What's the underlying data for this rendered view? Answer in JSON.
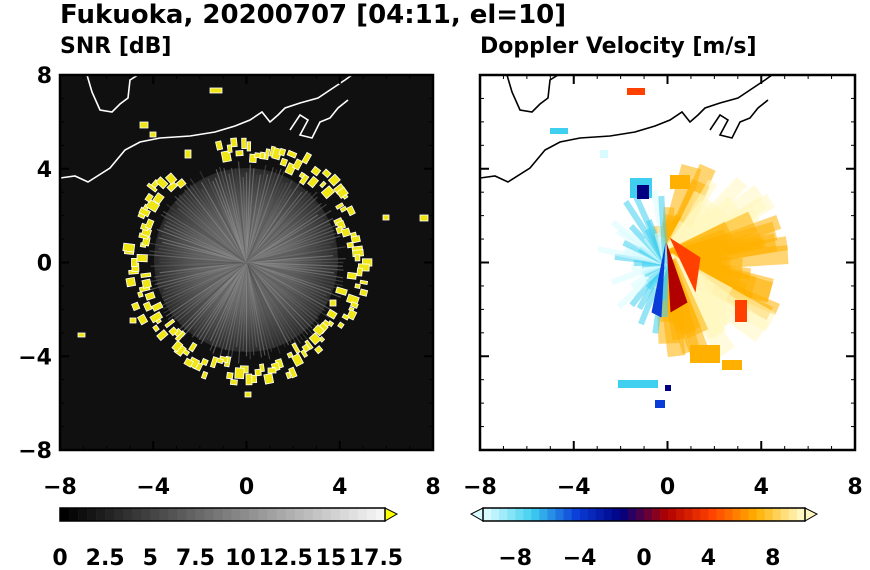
{
  "title": "Fukuoka, 20200707 [04:11, el=10]",
  "chart_data": [
    {
      "type": "heatmap",
      "title": "SNR [dB]",
      "xlim": [
        -8,
        8
      ],
      "ylim": [
        -8,
        8
      ],
      "xticks": [
        "−8",
        "−4",
        "0",
        "4",
        "8"
      ],
      "yticks": [
        "8",
        "4",
        "0",
        "−4",
        "−8"
      ],
      "colorbar": {
        "range": [
          0,
          18
        ],
        "extend": "max",
        "ticks": [
          {
            "value": 0,
            "label": "0"
          },
          {
            "value": 2.5,
            "label": "2.5"
          },
          {
            "value": 5,
            "label": "5"
          },
          {
            "value": 7.5,
            "label": "7.5"
          },
          {
            "value": 10,
            "label": "10"
          },
          {
            "value": 12.5,
            "label": "12.5"
          },
          {
            "value": 15,
            "label": "15"
          },
          {
            "value": 17.5,
            "label": "17.5"
          }
        ],
        "colors": [
          "#000000",
          "#ffffff",
          "#ffff00"
        ]
      },
      "background_color": "#101010",
      "echo_ring_color": "#f0e614",
      "echo_ring_radius": [
        4.2,
        5.2
      ]
    },
    {
      "type": "heatmap",
      "title": "Doppler Velocity [m/s]",
      "xlim": [
        -8,
        8
      ],
      "ylim": [
        -8,
        8
      ],
      "xticks": [
        "−8",
        "−4",
        "0",
        "4",
        "8"
      ],
      "yticks": [
        "8",
        "4",
        "0",
        "−4",
        "−8"
      ],
      "colorbar": {
        "range": [
          -10,
          10
        ],
        "extend": "both",
        "ticks": [
          {
            "value": -8,
            "label": "−8"
          },
          {
            "value": -4,
            "label": "−4"
          },
          {
            "value": 0,
            "label": "0"
          },
          {
            "value": 4,
            "label": "4"
          },
          {
            "value": 8,
            "label": "8"
          }
        ],
        "colors": [
          "#d8fbff",
          "#3fd0f0",
          "#0a3cd8",
          "#000080",
          "#b00000",
          "#ff4000",
          "#ffb000",
          "#fff7c0"
        ]
      },
      "background_color": "#ffffff"
    }
  ]
}
